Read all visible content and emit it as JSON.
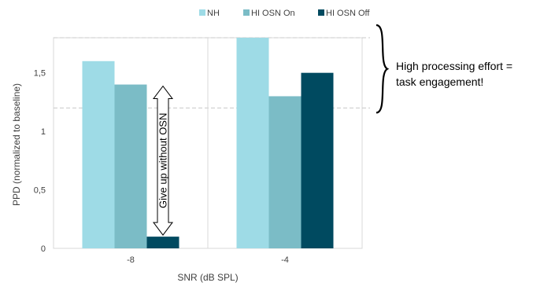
{
  "chart_data": {
    "type": "bar",
    "categories": [
      "-8",
      "-4"
    ],
    "series": [
      {
        "name": "NH",
        "values": [
          1.6,
          1.8
        ],
        "color": "#9edbe6"
      },
      {
        "name": "HI OSN On",
        "values": [
          1.4,
          1.3
        ],
        "color": "#7bbcc6"
      },
      {
        "name": "HI OSN Off",
        "values": [
          0.1,
          1.5
        ],
        "color": "#004a60"
      }
    ],
    "xlabel": "SNR (dB SPL)",
    "ylabel": "PPD (normalized to baseline)",
    "ylim": [
      0,
      1.8
    ],
    "yticks": [
      0,
      0.5,
      1,
      1.5
    ],
    "ytick_labels": [
      "0",
      "0,5",
      "1",
      "1,5"
    ],
    "legend_position": "top-center",
    "reference_lines": [
      1.2,
      1.8
    ],
    "annotations": {
      "arrow_label": "Give up without OSN",
      "arrow_from": 0.1,
      "arrow_to": 1.4,
      "brace_text": [
        "High processing effort =",
        "task engagement!"
      ],
      "brace_from": 1.2,
      "brace_to": 1.8
    }
  }
}
